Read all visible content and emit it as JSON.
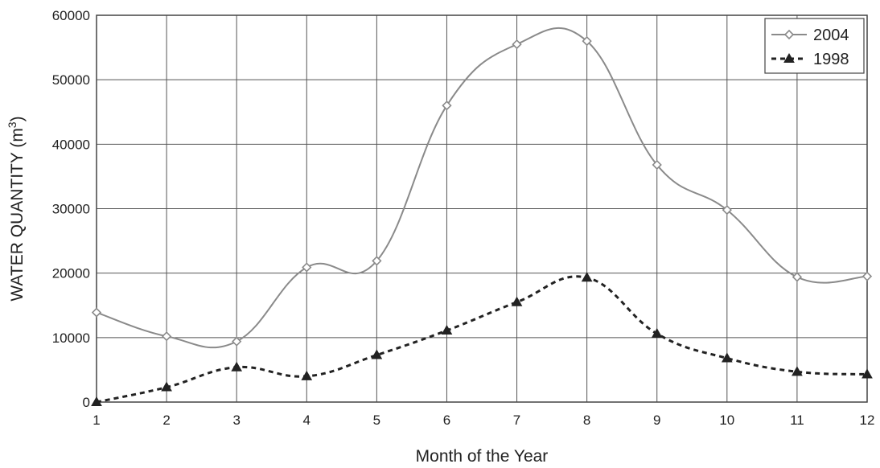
{
  "chart_data": {
    "type": "line",
    "title": "",
    "xlabel": "Month of the Year",
    "ylabel_main": "WATER QUANTITY (m",
    "ylabel_sup": "3",
    "ylabel_close": ")",
    "x": [
      1,
      2,
      3,
      4,
      5,
      6,
      7,
      8,
      9,
      10,
      11,
      12
    ],
    "x_tick_labels": [
      "1",
      "2",
      "3",
      "4",
      "5",
      "6",
      "7",
      "8",
      "9",
      "10",
      "11",
      "12"
    ],
    "y_ticks": [
      0,
      10000,
      20000,
      30000,
      40000,
      50000,
      60000
    ],
    "y_tick_labels": [
      "0",
      "10000",
      "20000",
      "30000",
      "40000",
      "50000",
      "60000"
    ],
    "xlim": [
      1,
      12
    ],
    "ylim": [
      0,
      60000
    ],
    "grid": true,
    "legend_position": "top-right",
    "series": [
      {
        "name": "2004",
        "marker": "diamond",
        "line_style": "solid",
        "color": "#8a8a8a",
        "values": [
          13900,
          10200,
          9400,
          20900,
          21900,
          46000,
          55500,
          56000,
          36800,
          29800,
          19400,
          19500
        ]
      },
      {
        "name": "1998",
        "marker": "triangle",
        "line_style": "dashed",
        "color": "#222222",
        "values": [
          0,
          2300,
          5400,
          4000,
          7300,
          11100,
          15500,
          19300,
          10600,
          6800,
          4700,
          4300
        ]
      }
    ]
  }
}
